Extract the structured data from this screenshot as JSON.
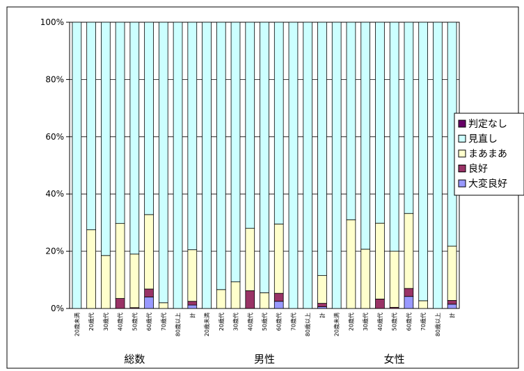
{
  "chart_data": {
    "type": "bar",
    "stacked": true,
    "percent": true,
    "ylim": [
      0,
      100
    ],
    "yticks": [
      "0%",
      "20%",
      "40%",
      "60%",
      "80%",
      "100%"
    ],
    "grid": true,
    "legend_position": "right",
    "groups": [
      "総数",
      "男性",
      "女性"
    ],
    "categories": [
      "20歳未満",
      "20歳代",
      "30歳代",
      "40歳代",
      "50歳代",
      "60歳代",
      "70歳代",
      "80歳以上",
      "計"
    ],
    "series": [
      {
        "name": "大変良好",
        "color": "#9999ff",
        "values": [
          [
            0,
            0,
            0,
            0,
            0,
            4,
            0,
            0,
            1.2
          ],
          [
            0,
            0,
            0,
            0,
            0,
            2.5,
            0,
            0,
            0.6
          ],
          [
            0,
            0,
            0,
            0,
            0,
            4.2,
            0,
            0,
            1.5
          ]
        ]
      },
      {
        "name": "良好",
        "color": "#993366",
        "values": [
          [
            0,
            0,
            0,
            3.5,
            0.3,
            2.8,
            0,
            0,
            1.3
          ],
          [
            0,
            0,
            0,
            6.2,
            0,
            2.8,
            0,
            0,
            1.2
          ],
          [
            0,
            0,
            0,
            3.3,
            0.4,
            2.8,
            0,
            0,
            1.3
          ]
        ]
      },
      {
        "name": "まあまあ",
        "color": "#ffffcc",
        "values": [
          [
            0,
            27.5,
            18.5,
            26.2,
            18.7,
            26,
            2,
            0,
            18
          ],
          [
            0,
            6.6,
            9.3,
            21.8,
            5.5,
            24.2,
            0,
            0,
            9.7
          ],
          [
            0,
            31,
            20.7,
            26.5,
            19.6,
            26.2,
            2.7,
            0,
            19
          ]
        ]
      },
      {
        "name": "見直し",
        "color": "#ccffff",
        "values": [
          [
            100,
            72.5,
            81.5,
            70.3,
            81,
            67.2,
            98,
            100,
            79.5
          ],
          [
            100,
            93.4,
            90.7,
            72,
            94.5,
            70.5,
            100,
            100,
            88.5
          ],
          [
            100,
            69,
            79.3,
            70.2,
            80,
            66.8,
            97.3,
            100,
            78.2
          ]
        ]
      },
      {
        "name": "判定なし",
        "color": "#660066",
        "values": [
          [
            0,
            0,
            0,
            0,
            0,
            0,
            0,
            0,
            0
          ],
          [
            0,
            0,
            0,
            0,
            0,
            0,
            0,
            0,
            0
          ],
          [
            0,
            0,
            0,
            0,
            0,
            0,
            0,
            0,
            0
          ]
        ]
      }
    ],
    "legend_order": [
      "判定なし",
      "見直し",
      "まあまあ",
      "良好",
      "大変良好"
    ]
  }
}
